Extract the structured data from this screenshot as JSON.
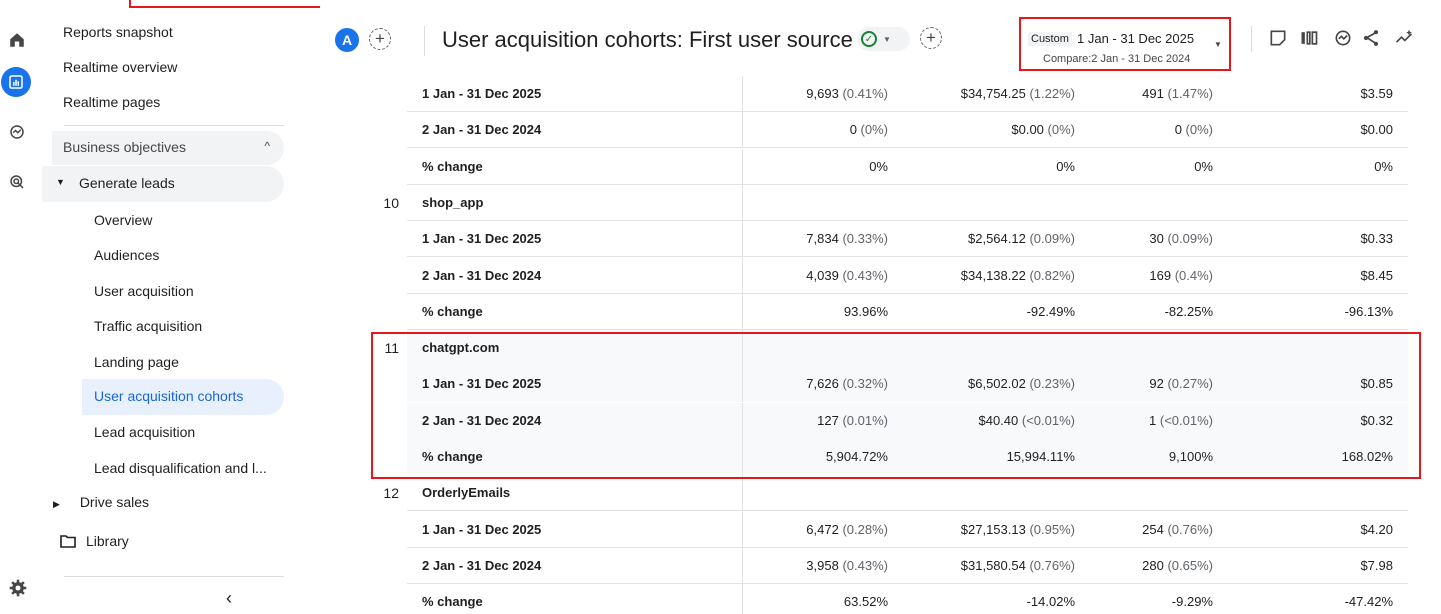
{
  "nav": {
    "items_top": [
      "Reports snapshot",
      "Realtime overview",
      "Realtime pages"
    ],
    "section": "Business objectives",
    "group": "Generate leads",
    "sub_items": [
      "Overview",
      "Audiences",
      "User acquisition",
      "Traffic acquisition",
      "Landing page",
      "User acquisition cohorts",
      "Lead acquisition",
      "Lead disqualification and l..."
    ],
    "active_index": 5,
    "drive": "Drive sales",
    "library": "Library"
  },
  "header": {
    "avatar": "A",
    "title": "User acquisition cohorts: First user source",
    "date_chip": "Custom",
    "date_range": "1 Jan - 31 Dec 2025",
    "compare": "Compare:2 Jan - 31 Dec 2024"
  },
  "rows": [
    {
      "type": "data",
      "label": "1 Jan - 31 Dec 2025",
      "v1": "9,693",
      "p1": "(0.41%)",
      "v2": "$34,754.25",
      "p2": "(1.22%)",
      "v3": "491",
      "p3": "(1.47%)",
      "v4": "$3.59"
    },
    {
      "type": "data",
      "label": "2 Jan - 31 Dec 2024",
      "v1": "0",
      "p1": "(0%)",
      "v2": "$0.00",
      "p2": "(0%)",
      "v3": "0",
      "p3": "(0%)",
      "v4": "$0.00"
    },
    {
      "type": "data",
      "label": "% change",
      "v1": "0%",
      "p1": "",
      "v2": "0%",
      "p2": "",
      "v3": "0%",
      "p3": "",
      "v4": "0%"
    },
    {
      "type": "group",
      "index": "10",
      "label": "shop_app"
    },
    {
      "type": "data",
      "label": "1 Jan - 31 Dec 2025",
      "v1": "7,834",
      "p1": "(0.33%)",
      "v2": "$2,564.12",
      "p2": "(0.09%)",
      "v3": "30",
      "p3": "(0.09%)",
      "v4": "$0.33"
    },
    {
      "type": "data",
      "label": "2 Jan - 31 Dec 2024",
      "v1": "4,039",
      "p1": "(0.43%)",
      "v2": "$34,138.22",
      "p2": "(0.82%)",
      "v3": "169",
      "p3": "(0.4%)",
      "v4": "$8.45"
    },
    {
      "type": "data",
      "label": "% change",
      "v1": "93.96%",
      "p1": "",
      "v2": "-92.49%",
      "p2": "",
      "v3": "-82.25%",
      "p3": "",
      "v4": "-96.13%"
    },
    {
      "type": "group",
      "index": "11",
      "label": "chatgpt.com"
    },
    {
      "type": "data",
      "label": "1 Jan - 31 Dec 2025",
      "v1": "7,626",
      "p1": "(0.32%)",
      "v2": "$6,502.02",
      "p2": "(0.23%)",
      "v3": "92",
      "p3": "(0.27%)",
      "v4": "$0.85"
    },
    {
      "type": "data",
      "label": "2 Jan - 31 Dec 2024",
      "v1": "127",
      "p1": "(0.01%)",
      "v2": "$40.40",
      "p2": "(<0.01%)",
      "v3": "1",
      "p3": "(<0.01%)",
      "v4": "$0.32"
    },
    {
      "type": "data",
      "label": "% change",
      "v1": "5,904.72%",
      "p1": "",
      "v2": "15,994.11%",
      "p2": "",
      "v3": "9,100%",
      "p3": "",
      "v4": "168.02%"
    },
    {
      "type": "group",
      "index": "12",
      "label": "OrderlyEmails"
    },
    {
      "type": "data",
      "label": "1 Jan - 31 Dec 2025",
      "v1": "6,472",
      "p1": "(0.28%)",
      "v2": "$27,153.13",
      "p2": "(0.95%)",
      "v3": "254",
      "p3": "(0.76%)",
      "v4": "$4.20"
    },
    {
      "type": "data",
      "label": "2 Jan - 31 Dec 2024",
      "v1": "3,958",
      "p1": "(0.43%)",
      "v2": "$31,580.54",
      "p2": "(0.76%)",
      "v3": "280",
      "p3": "(0.65%)",
      "v4": "$7.98"
    },
    {
      "type": "data",
      "label": "% change",
      "v1": "63.52%",
      "p1": "",
      "v2": "-14.02%",
      "p2": "",
      "v3": "-9.29%",
      "p3": "",
      "v4": "-47.42%"
    }
  ]
}
